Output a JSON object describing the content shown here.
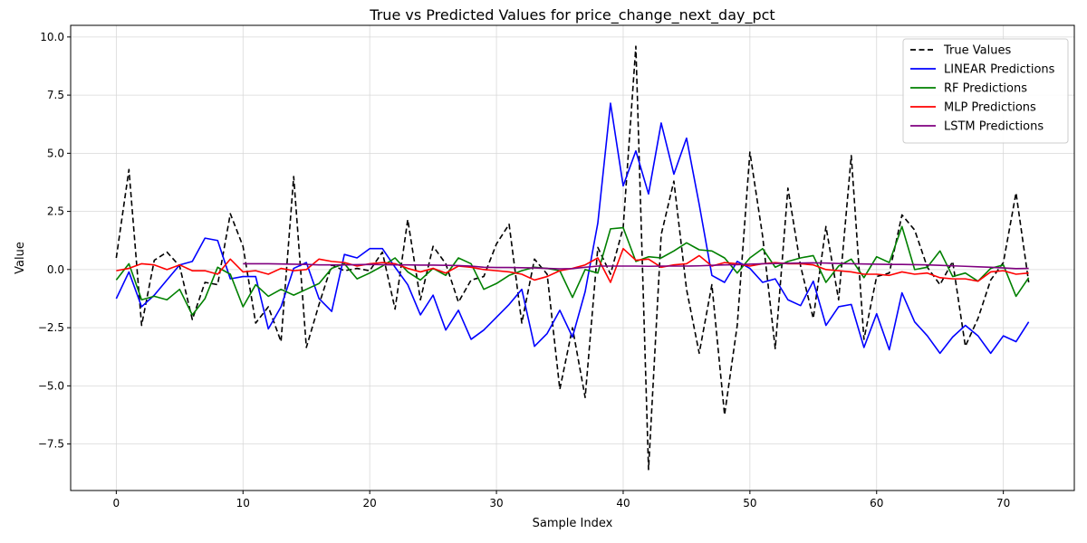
{
  "chart_data": {
    "type": "line",
    "title": "True vs Predicted Values for price_change_next_day_pct",
    "xlabel": "Sample Index",
    "ylabel": "Value",
    "xlim": [
      -3.6,
      75.6
    ],
    "ylim": [
      -9.5,
      10.5
    ],
    "xticks": [
      0,
      10,
      20,
      30,
      40,
      50,
      60,
      70
    ],
    "yticks": [
      -7.5,
      -5.0,
      -2.5,
      0.0,
      2.5,
      5.0,
      7.5,
      10.0
    ],
    "ytick_labels": [
      "−7.5",
      "−5.0",
      "−2.5",
      "0.0",
      "2.5",
      "5.0",
      "7.5",
      "10.0"
    ],
    "grid": true,
    "legend_position": "top-right",
    "series": [
      {
        "name": "True Values",
        "color": "#000000",
        "dash": true,
        "values": [
          0.5,
          4.3,
          -2.4,
          0.4,
          0.75,
          0.15,
          -2.15,
          -0.55,
          -0.65,
          2.4,
          1.0,
          -2.3,
          -1.6,
          -3.1,
          4.0,
          -3.35,
          -1.5,
          0.2,
          -0.05,
          0.05,
          -0.05,
          0.75,
          -1.7,
          2.15,
          -1.3,
          1.0,
          0.25,
          -1.4,
          -0.45,
          -0.3,
          1.1,
          1.95,
          -2.3,
          0.45,
          -0.2,
          -5.15,
          -2.5,
          -5.5,
          0.95,
          -0.2,
          1.8,
          9.6,
          -8.6,
          1.5,
          3.8,
          -0.85,
          -3.6,
          -0.65,
          -6.25,
          -2.4,
          5.05,
          1.45,
          -3.4,
          3.5,
          0.15,
          -2.1,
          1.85,
          -1.3,
          4.9,
          -3.0,
          -0.3,
          -0.15,
          2.35,
          1.7,
          0.1,
          -0.65,
          0.35,
          -3.3,
          -2.1,
          -0.45,
          0.3,
          3.3,
          -0.55
        ]
      },
      {
        "name": "LINEAR Predictions",
        "color": "#0000ff",
        "dash": false,
        "values": [
          -1.25,
          -0.1,
          -1.6,
          -1.1,
          -0.45,
          0.2,
          0.35,
          1.35,
          1.25,
          -0.4,
          -0.3,
          -0.3,
          -2.55,
          -1.6,
          0.05,
          0.3,
          -1.25,
          -1.8,
          0.65,
          0.5,
          0.9,
          0.9,
          0.1,
          -0.65,
          -1.95,
          -1.1,
          -2.6,
          -1.75,
          -3.0,
          -2.6,
          -2.05,
          -1.5,
          -0.85,
          -3.3,
          -2.75,
          -1.75,
          -2.9,
          -0.95,
          2.0,
          7.15,
          3.6,
          5.1,
          3.25,
          6.3,
          4.1,
          5.65,
          2.8,
          -0.25,
          -0.55,
          0.35,
          0.05,
          -0.55,
          -0.4,
          -1.3,
          -1.55,
          -0.5,
          -2.4,
          -1.6,
          -1.5,
          -3.35,
          -1.9,
          -3.45,
          -1.0,
          -2.25,
          -2.85,
          -3.6,
          -2.9,
          -2.4,
          -2.85,
          -3.6,
          -2.85,
          -3.1,
          -2.25
        ]
      },
      {
        "name": "RF Predictions",
        "color": "#008000",
        "dash": false,
        "values": [
          -0.45,
          0.25,
          -1.3,
          -1.15,
          -1.3,
          -0.85,
          -1.95,
          -1.25,
          0.1,
          -0.2,
          -1.6,
          -0.65,
          -1.15,
          -0.85,
          -1.1,
          -0.85,
          -0.6,
          0.05,
          0.25,
          -0.4,
          -0.15,
          0.15,
          0.5,
          -0.1,
          -0.45,
          0.05,
          -0.25,
          0.5,
          0.25,
          -0.85,
          -0.6,
          -0.25,
          -0.05,
          0.1,
          0.05,
          -0.05,
          -1.2,
          0.0,
          -0.15,
          1.75,
          1.8,
          0.35,
          0.55,
          0.5,
          0.8,
          1.15,
          0.85,
          0.8,
          0.5,
          -0.15,
          0.5,
          0.9,
          0.1,
          0.35,
          0.5,
          0.6,
          -0.55,
          0.15,
          0.45,
          -0.35,
          0.55,
          0.3,
          1.85,
          0.0,
          0.1,
          0.8,
          -0.3,
          -0.15,
          -0.5,
          0.05,
          0.2,
          -1.15,
          -0.35
        ]
      },
      {
        "name": "MLP Predictions",
        "color": "#ff0000",
        "dash": false,
        "values": [
          -0.05,
          0.05,
          0.25,
          0.2,
          0.0,
          0.2,
          -0.05,
          -0.05,
          -0.2,
          0.45,
          -0.1,
          -0.05,
          -0.2,
          0.05,
          -0.05,
          0.0,
          0.45,
          0.35,
          0.3,
          0.15,
          0.25,
          0.3,
          0.25,
          0.05,
          -0.1,
          0.05,
          -0.15,
          0.15,
          0.1,
          0.0,
          -0.05,
          -0.1,
          -0.2,
          -0.45,
          -0.3,
          -0.05,
          0.05,
          0.2,
          0.5,
          -0.55,
          0.9,
          0.4,
          0.45,
          0.1,
          0.2,
          0.25,
          0.6,
          0.15,
          0.3,
          0.25,
          0.15,
          0.25,
          0.3,
          0.25,
          0.25,
          0.2,
          0.0,
          -0.05,
          -0.1,
          -0.2,
          -0.2,
          -0.25,
          -0.1,
          -0.2,
          -0.15,
          -0.35,
          -0.4,
          -0.4,
          -0.5,
          -0.1,
          -0.05,
          -0.2,
          -0.15
        ]
      },
      {
        "name": "LSTM Predictions",
        "color": "#800080",
        "dash": false,
        "values": [
          null,
          null,
          null,
          null,
          null,
          null,
          null,
          null,
          null,
          null,
          0.25,
          0.25,
          0.25,
          0.24,
          0.23,
          0.22,
          0.2,
          0.2,
          0.2,
          0.21,
          0.22,
          0.21,
          0.2,
          0.2,
          0.19,
          0.19,
          0.18,
          0.17,
          0.15,
          0.1,
          0.09,
          0.09,
          0.08,
          0.07,
          0.05,
          0.03,
          0.04,
          0.1,
          0.15,
          0.15,
          0.15,
          0.15,
          0.14,
          0.15,
          0.15,
          0.15,
          0.16,
          0.18,
          0.2,
          0.21,
          0.23,
          0.25,
          0.26,
          0.27,
          0.28,
          0.29,
          0.28,
          0.26,
          0.25,
          0.24,
          0.23,
          0.22,
          0.22,
          0.21,
          0.2,
          0.18,
          0.16,
          0.14,
          0.12,
          0.1,
          0.07,
          0.04,
          0.05
        ]
      }
    ]
  }
}
